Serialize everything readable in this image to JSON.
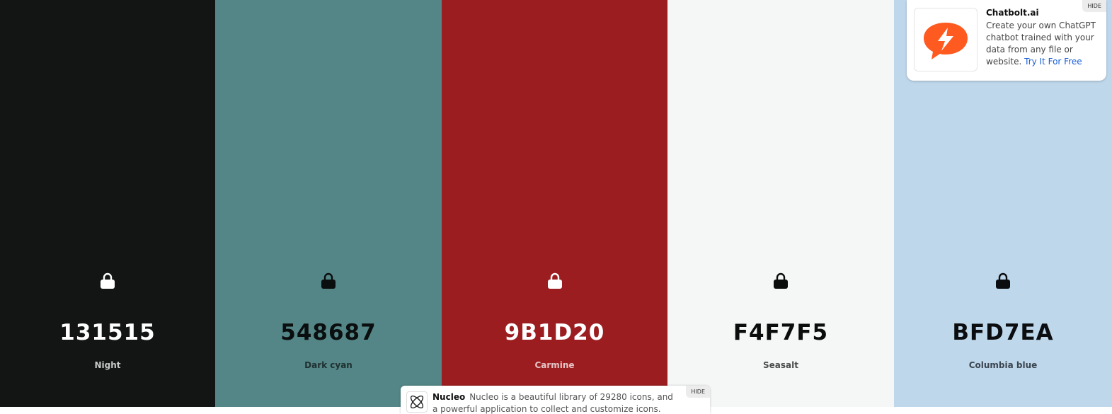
{
  "palette": [
    {
      "hex": "131515",
      "name": "Night",
      "color": "#131515",
      "text_color": "#ffffff",
      "name_color": "#c8c9c9"
    },
    {
      "hex": "548687",
      "name": "Dark cyan",
      "color": "#548687",
      "text_color": "#0b0e0e",
      "name_color": "#1f3030"
    },
    {
      "hex": "9B1D20",
      "name": "Carmine",
      "color": "#9b1d20",
      "text_color": "#ffffff",
      "name_color": "#e6c4c5"
    },
    {
      "hex": "F4F7F5",
      "name": "Seasalt",
      "color": "#f4f7f5",
      "text_color": "#0b0d0c",
      "name_color": "#4a4d4b"
    },
    {
      "hex": "BFD7EA",
      "name": "Columbia blue",
      "color": "#bfd7ea",
      "text_color": "#0b0d10",
      "name_color": "#3a4550"
    }
  ],
  "ad": {
    "title": "Chatbolt.ai",
    "text": "Create your own ChatGPT chatbot trained with your data from any file or website.",
    "link": "Try It For Free",
    "hide": "HIDE"
  },
  "banner": {
    "title": "Nucleo",
    "text": "Nucleo is a beautiful library of 29280 icons, and a powerful application to collect and customize icons.",
    "hide": "HIDE"
  }
}
